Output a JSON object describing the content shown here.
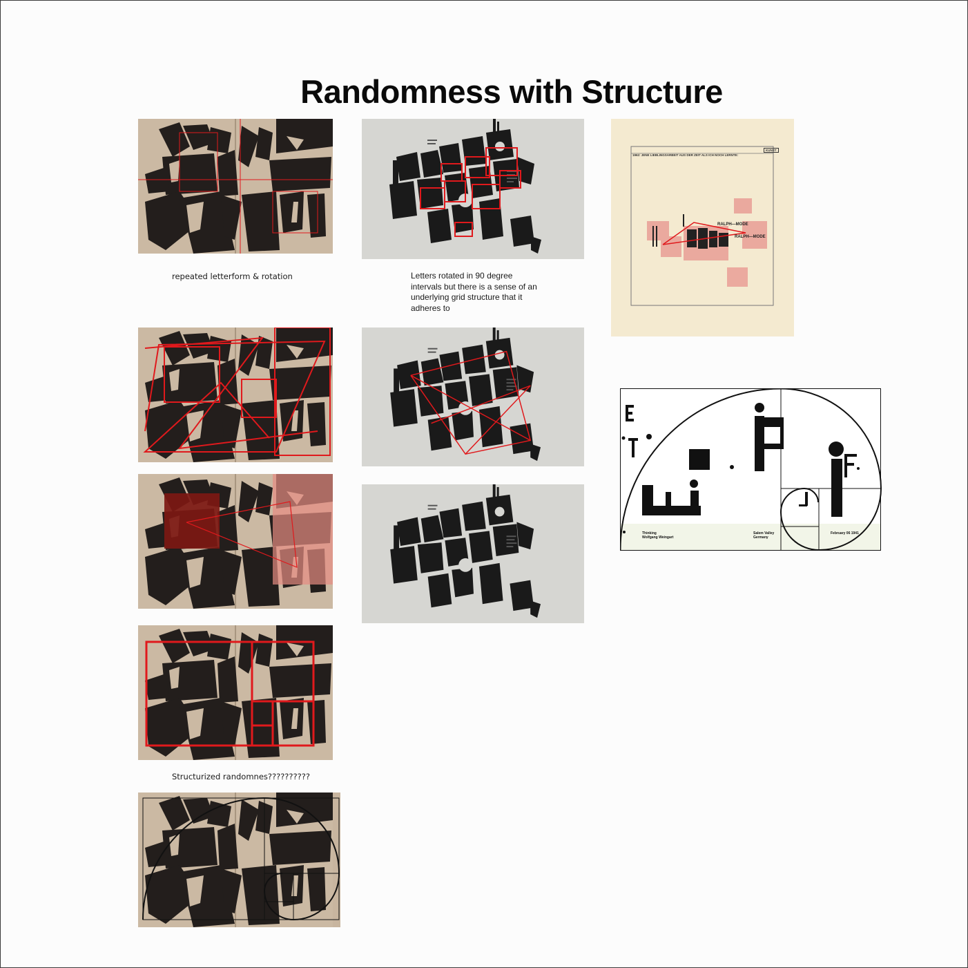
{
  "page": {
    "title": "Randomness with Structure"
  },
  "captions": {
    "rotation": "repeated letterform & rotation",
    "grid": "Letters rotated in 90 degree intervals but there is a sense of an underlying grid structure that it adheres to",
    "structurized": "Structurized randomnes??????????"
  },
  "poster": {
    "header": "1962: JENE LIEBLINGSARBEIT AUS DER ZEIT ALS ICH NOCH LERNTE:",
    "tag": "KUNST",
    "label1": "RALPH—MODE",
    "label2": "RALPH—MODE",
    "mark": "ralph"
  },
  "fib_poster": {
    "footer_left_1": "Thinking",
    "footer_left_2": "Wolfgang Weingart",
    "footer_mid_1": "Salem Valley",
    "footer_mid_2": "Germany",
    "footer_right": "February 06 1941"
  },
  "colors": {
    "accent_red": "#e0191c",
    "dark_red": "#7d1812",
    "spread_bg": "#c8b59f",
    "gray_bg": "#d6d6d2",
    "cream_bg": "#f4ead0"
  }
}
